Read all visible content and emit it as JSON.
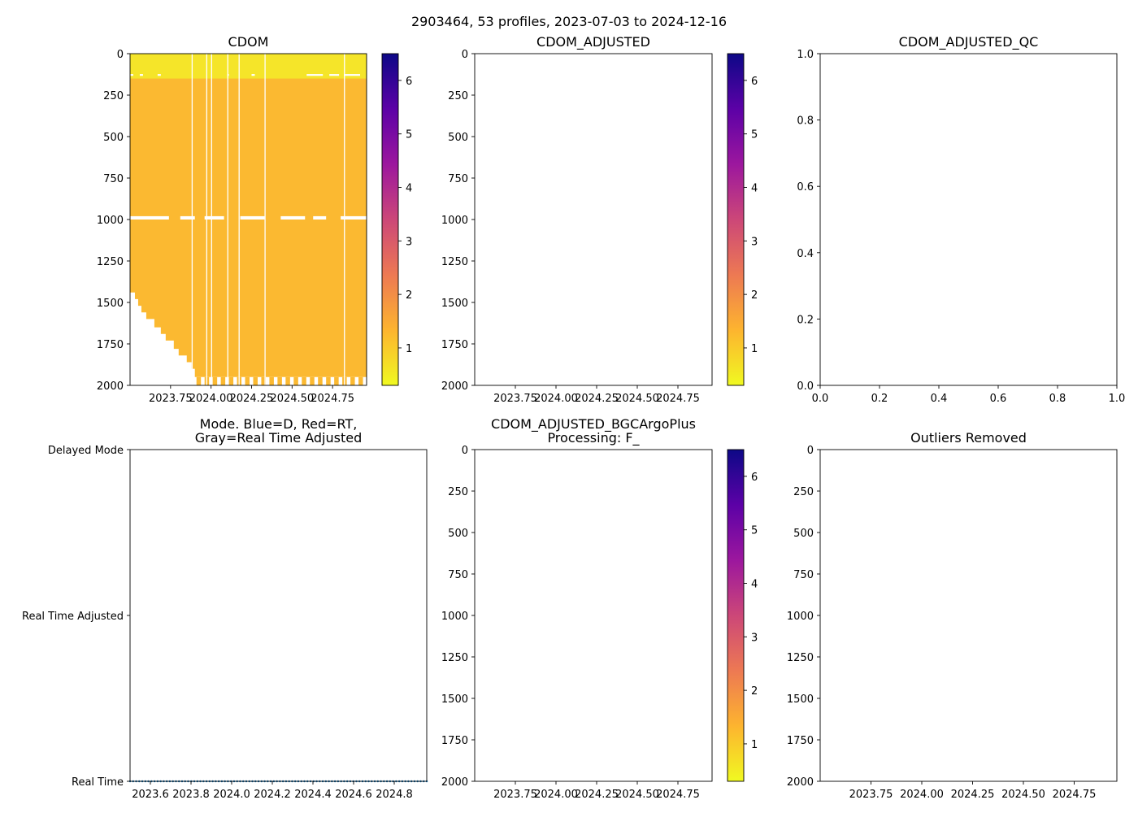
{
  "figure": {
    "suptitle": "2903464, 53 profiles, 2023-07-03 to 2024-12-16"
  },
  "colors": {
    "cmap_plasma_r": [
      "#f0f921",
      "#fdb42f",
      "#ed7953",
      "#cc4778",
      "#9c179e",
      "#5c01a6",
      "#0d0887"
    ],
    "cdom_fill": "#fbb931",
    "cdom_surface": "#f3ec28",
    "mode_marker": "#1f77b4"
  },
  "chart_data": [
    {
      "id": "cdom",
      "type": "heatmap",
      "title": "CDOM",
      "xlim": [
        2023.5,
        2024.96
      ],
      "ylim": [
        2000,
        0
      ],
      "x_ticks": [
        2023.75,
        2024.0,
        2024.25,
        2024.5,
        2024.75
      ],
      "x_tick_labels": [
        "2023.75",
        "2024.00",
        "2024.25",
        "2024.50",
        "2024.75"
      ],
      "y_ticks": [
        0,
        250,
        500,
        750,
        1000,
        1250,
        1500,
        1750,
        2000
      ],
      "y_tick_labels": [
        "0",
        "250",
        "500",
        "750",
        "1000",
        "1250",
        "1500",
        "1750",
        "2000"
      ],
      "value_range": [
        0.3,
        6.5
      ],
      "typical_value": 1.1,
      "profile_gaps_x": [
        2023.88,
        2023.97,
        2024.0,
        2024.1,
        2024.17,
        2024.33,
        2024.82
      ],
      "max_depth_profile": [
        [
          2023.5,
          1440
        ],
        [
          2023.53,
          1480
        ],
        [
          2023.55,
          1520
        ],
        [
          2023.57,
          1560
        ],
        [
          2023.6,
          1600
        ],
        [
          2023.65,
          1650
        ],
        [
          2023.69,
          1690
        ],
        [
          2023.72,
          1730
        ],
        [
          2023.77,
          1780
        ],
        [
          2023.8,
          1820
        ],
        [
          2023.85,
          1860
        ],
        [
          2023.88,
          1900
        ],
        [
          2023.9,
          1950
        ],
        [
          2024.96,
          1950
        ]
      ],
      "bottom_data_x": [
        2023.91,
        2023.96,
        2024.01,
        2024.06,
        2024.11,
        2024.16,
        2024.21,
        2024.26,
        2024.31,
        2024.36,
        2024.41,
        2024.46,
        2024.51,
        2024.56,
        2024.61,
        2024.66,
        2024.71,
        2024.76,
        2024.81,
        2024.86,
        2024.91
      ],
      "bottom_data_range": [
        1950,
        2000
      ],
      "missing_band_1000": [
        [
          2023.5,
          2023.74
        ],
        [
          2023.81,
          2023.9
        ],
        [
          2023.96,
          2024.08
        ],
        [
          2024.18,
          2024.33
        ],
        [
          2024.43,
          2024.58
        ],
        [
          2024.63,
          2024.71
        ],
        [
          2024.8,
          2024.96
        ]
      ],
      "missing_band_130": [
        [
          2023.5,
          2023.52
        ],
        [
          2023.56,
          2023.58
        ],
        [
          2023.67,
          2023.69
        ],
        [
          2024.1,
          2024.11
        ],
        [
          2024.25,
          2024.27
        ],
        [
          2024.59,
          2024.69
        ],
        [
          2024.73,
          2024.79
        ],
        [
          2024.82,
          2024.92
        ]
      ],
      "colorbar": {
        "ticks": [
          1,
          2,
          3,
          4,
          5,
          6
        ],
        "tick_labels": [
          "1",
          "2",
          "3",
          "4",
          "5",
          "6"
        ],
        "range": [
          0.3,
          6.5
        ]
      }
    },
    {
      "id": "cdom_adjusted",
      "type": "heatmap",
      "title": "CDOM_ADJUSTED",
      "xlim": [
        2023.5,
        2024.96
      ],
      "ylim": [
        2000,
        0
      ],
      "x_ticks": [
        2023.75,
        2024.0,
        2024.25,
        2024.5,
        2024.75
      ],
      "x_tick_labels": [
        "2023.75",
        "2024.00",
        "2024.25",
        "2024.50",
        "2024.75"
      ],
      "y_ticks": [
        0,
        250,
        500,
        750,
        1000,
        1250,
        1500,
        1750,
        2000
      ],
      "y_tick_labels": [
        "0",
        "250",
        "500",
        "750",
        "1000",
        "1250",
        "1500",
        "1750",
        "2000"
      ],
      "colorbar": {
        "ticks": [
          1,
          2,
          3,
          4,
          5,
          6
        ],
        "tick_labels": [
          "1",
          "2",
          "3",
          "4",
          "5",
          "6"
        ],
        "range": [
          0.3,
          6.5
        ]
      }
    },
    {
      "id": "cdom_adjusted_qc",
      "type": "scatter",
      "title": "CDOM_ADJUSTED_QC",
      "xlim": [
        0,
        1
      ],
      "ylim": [
        0,
        1
      ],
      "x_ticks": [
        0,
        0.2,
        0.4,
        0.6,
        0.8,
        1.0
      ],
      "x_tick_labels": [
        "0.0",
        "0.2",
        "0.4",
        "0.6",
        "0.8",
        "1.0"
      ],
      "y_ticks": [
        0,
        0.2,
        0.4,
        0.6,
        0.8,
        1.0
      ],
      "y_tick_labels": [
        "0.0",
        "0.2",
        "0.4",
        "0.6",
        "0.8",
        "1.0"
      ]
    },
    {
      "id": "mode",
      "type": "scatter",
      "title": "Mode. Blue=D, Red=RT,\nGray=Real Time Adjusted",
      "title_line1": "Mode. Blue=D, Red=RT,",
      "title_line2": "Gray=Real Time Adjusted",
      "xlim": [
        2023.5,
        2024.96
      ],
      "ylim": [
        0,
        2
      ],
      "x_ticks": [
        2023.6,
        2023.8,
        2024.0,
        2024.2,
        2024.4,
        2024.6,
        2024.8
      ],
      "x_tick_labels": [
        "2023.6",
        "2023.8",
        "2024.0",
        "2024.2",
        "2024.4",
        "2024.6",
        "2024.8"
      ],
      "y_ticks": [
        0,
        1,
        2
      ],
      "y_tick_labels": [
        "Real Time",
        "Real Time Adjusted",
        "Delayed Mode"
      ],
      "points_x_range": [
        2023.5,
        2024.96
      ],
      "points_count": 98,
      "points_y": 0
    },
    {
      "id": "bgcargoplus",
      "type": "heatmap",
      "title": "CDOM_ADJUSTED_BGCArgoPlus\nProcessing: F_",
      "title_line1": "CDOM_ADJUSTED_BGCArgoPlus",
      "title_line2": "Processing: F_",
      "xlim": [
        2023.5,
        2024.96
      ],
      "ylim": [
        2000,
        0
      ],
      "x_ticks": [
        2023.75,
        2024.0,
        2024.25,
        2024.5,
        2024.75
      ],
      "x_tick_labels": [
        "2023.75",
        "2024.00",
        "2024.25",
        "2024.50",
        "2024.75"
      ],
      "y_ticks": [
        0,
        250,
        500,
        750,
        1000,
        1250,
        1500,
        1750,
        2000
      ],
      "y_tick_labels": [
        "0",
        "250",
        "500",
        "750",
        "1000",
        "1250",
        "1500",
        "1750",
        "2000"
      ],
      "colorbar": {
        "ticks": [
          1,
          2,
          3,
          4,
          5,
          6
        ],
        "tick_labels": [
          "1",
          "2",
          "3",
          "4",
          "5",
          "6"
        ],
        "range": [
          0.3,
          6.5
        ]
      }
    },
    {
      "id": "outliers",
      "type": "scatter",
      "title": "Outliers Removed",
      "xlim": [
        2023.5,
        2024.96
      ],
      "ylim": [
        2000,
        0
      ],
      "x_ticks": [
        2023.75,
        2024.0,
        2024.25,
        2024.5,
        2024.75
      ],
      "x_tick_labels": [
        "2023.75",
        "2024.00",
        "2024.25",
        "2024.50",
        "2024.75"
      ],
      "y_ticks": [
        0,
        250,
        500,
        750,
        1000,
        1250,
        1500,
        1750,
        2000
      ],
      "y_tick_labels": [
        "0",
        "250",
        "500",
        "750",
        "1000",
        "1250",
        "1500",
        "1750",
        "2000"
      ]
    }
  ]
}
